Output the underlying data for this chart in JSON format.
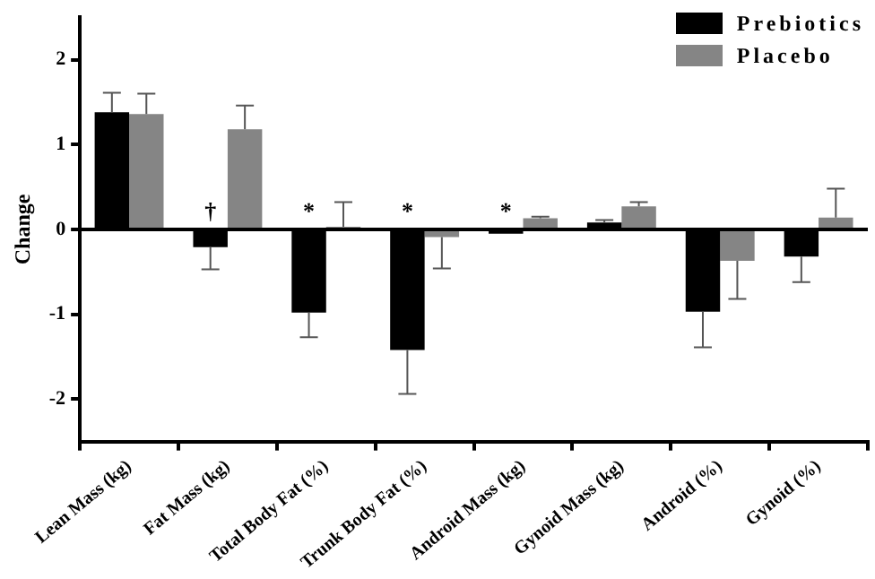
{
  "chart_data": {
    "type": "bar",
    "ylabel": "Change",
    "categories": [
      "Lean Mass (kg)",
      "Fat Mass (kg)",
      "Total Body Fat (%)",
      "Trunk Body Fat (%)",
      "Android Mass (kg)",
      "Gynoid Mass (kg)",
      "Android (%)",
      "Gynoid (%)"
    ],
    "series": [
      {
        "name": "Prebiotics",
        "color": "#000000",
        "values": [
          1.38,
          -0.21,
          -0.98,
          -1.42,
          -0.05,
          0.08,
          -0.97,
          -0.32
        ],
        "errors": [
          0.23,
          0.26,
          0.29,
          0.52,
          null,
          0.03,
          0.42,
          0.3
        ],
        "value_labels": [
          null,
          "†",
          "*",
          "*",
          "*",
          null,
          null,
          null
        ]
      },
      {
        "name": "Placebo",
        "color": "#858585",
        "values": [
          1.36,
          1.18,
          0.03,
          -0.09,
          0.13,
          0.27,
          -0.37,
          0.14
        ],
        "errors": [
          0.24,
          0.28,
          0.29,
          0.37,
          0.02,
          0.05,
          0.45,
          0.34
        ]
      }
    ],
    "ylim": [
      -2.5,
      2.5
    ],
    "yticks": [
      -2,
      -1,
      0,
      1,
      2
    ],
    "grid": false,
    "legend": "top right",
    "ref_lines": [
      {
        "axis": "y",
        "value": 0,
        "color": "#000000"
      }
    ]
  }
}
